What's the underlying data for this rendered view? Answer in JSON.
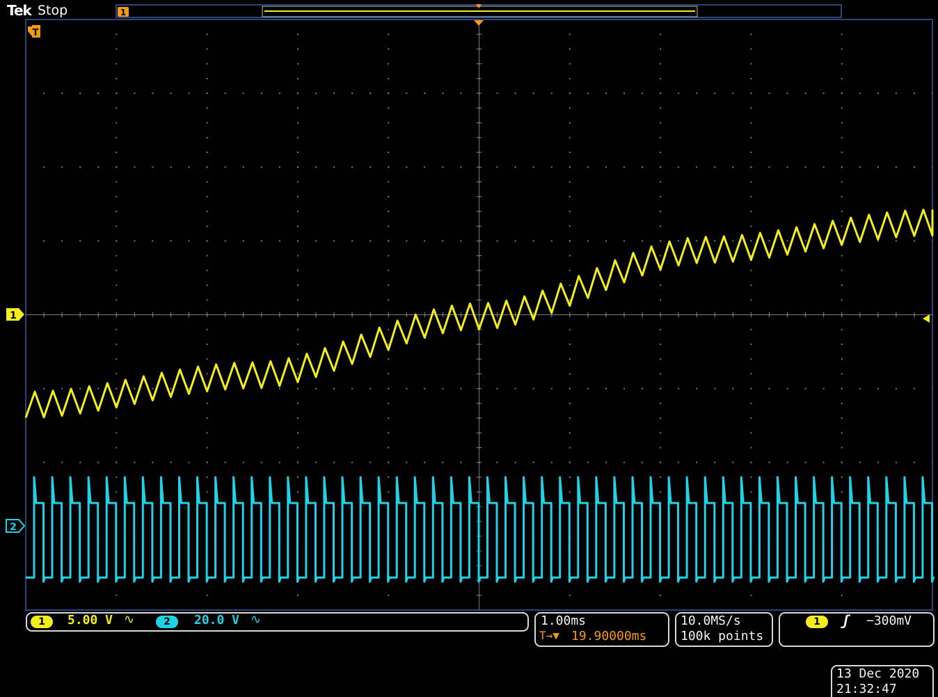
{
  "header": {
    "brand": "Tek",
    "acquisition_state": "Stop"
  },
  "colors": {
    "ch1": "#f2ee1d",
    "ch2": "#21d2e6",
    "trigger": "#f29a16",
    "grid": "#7a7a7a",
    "frame": "#3a5b9c"
  },
  "markers": {
    "trigger_pos_label": "T",
    "ch1_ground_label": "1",
    "ch2_ground_label": "2"
  },
  "channels": [
    {
      "id": "1",
      "scale": "5.00 V",
      "coupling_icon": "ac-coupling-icon",
      "coupling_glyph": "∿"
    },
    {
      "id": "2",
      "scale": "20.0 V",
      "coupling_icon": "ac-coupling-icon",
      "coupling_glyph": "∿"
    }
  ],
  "horizontal": {
    "time_per_div": "1.00ms",
    "trigger_delay": "19.90000ms",
    "delay_prefix": "T→▼"
  },
  "acquisition": {
    "sample_rate": "10.0MS/s",
    "record_length": "100k points"
  },
  "trigger": {
    "source": "1",
    "slope_glyph": "ʃ",
    "level": "−300mV"
  },
  "datetime": {
    "date": "13 Dec 2020",
    "time": "21:32:47"
  },
  "chart_data": {
    "type": "line",
    "x_range_divisions": [
      -5,
      5
    ],
    "y_range_divisions": [
      -4,
      4
    ],
    "series": [
      {
        "trace": "ch1-sawtooth",
        "cycles": 50,
        "ripple_pp_div": 0.35,
        "baseline_div": [
          [
            -5,
            -1.22
          ],
          [
            -2.5,
            -0.82
          ],
          [
            0,
            -0.02
          ],
          [
            2.5,
            0.88
          ],
          [
            5,
            1.25
          ]
        ]
      },
      {
        "trace": "ch2-pulse-train",
        "cycles": 50,
        "low_div": -3.56,
        "high_div": -2.55,
        "spike_div": -2.2
      }
    ]
  }
}
